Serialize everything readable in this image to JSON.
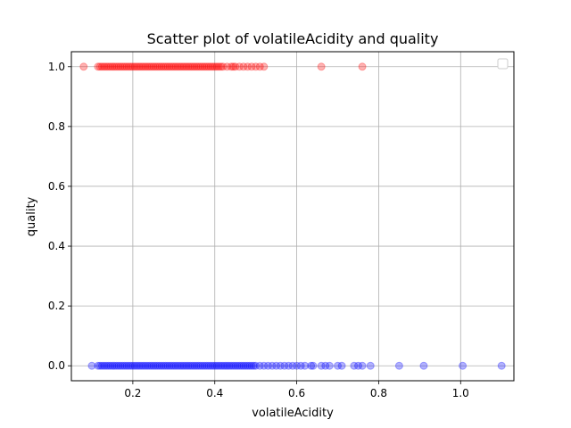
{
  "chart_data": {
    "type": "scatter",
    "title": "Scatter plot of volatileAcidity and quality",
    "xlabel": "volatileAcidity",
    "ylabel": "quality",
    "xlim": [
      0.05,
      1.13
    ],
    "ylim": [
      -0.05,
      1.05
    ],
    "xticks": [
      0.2,
      0.4,
      0.6,
      0.8,
      1.0
    ],
    "xtick_labels": [
      "0.2",
      "0.4",
      "0.6",
      "0.8",
      "1.0"
    ],
    "yticks": [
      0.0,
      0.2,
      0.4,
      0.6,
      0.8,
      1.0
    ],
    "ytick_labels": [
      "0.0",
      "0.2",
      "0.4",
      "0.6",
      "0.8",
      "1.0"
    ],
    "grid": true,
    "legend": {
      "placement": "top-right",
      "entries": []
    },
    "series": [
      {
        "color": "#ff0000",
        "alpha": 0.3,
        "points": [
          [
            0.08,
            1
          ],
          [
            0.115,
            1
          ],
          [
            0.12,
            1
          ],
          [
            0.125,
            1
          ],
          [
            0.13,
            1
          ],
          [
            0.135,
            1
          ],
          [
            0.14,
            1
          ],
          [
            0.145,
            1
          ],
          [
            0.15,
            1
          ],
          [
            0.155,
            1
          ],
          [
            0.16,
            1
          ],
          [
            0.165,
            1
          ],
          [
            0.17,
            1
          ],
          [
            0.175,
            1
          ],
          [
            0.18,
            1
          ],
          [
            0.185,
            1
          ],
          [
            0.19,
            1
          ],
          [
            0.195,
            1
          ],
          [
            0.2,
            1
          ],
          [
            0.205,
            1
          ],
          [
            0.21,
            1
          ],
          [
            0.215,
            1
          ],
          [
            0.22,
            1
          ],
          [
            0.225,
            1
          ],
          [
            0.23,
            1
          ],
          [
            0.235,
            1
          ],
          [
            0.24,
            1
          ],
          [
            0.245,
            1
          ],
          [
            0.25,
            1
          ],
          [
            0.255,
            1
          ],
          [
            0.26,
            1
          ],
          [
            0.265,
            1
          ],
          [
            0.27,
            1
          ],
          [
            0.275,
            1
          ],
          [
            0.28,
            1
          ],
          [
            0.285,
            1
          ],
          [
            0.29,
            1
          ],
          [
            0.295,
            1
          ],
          [
            0.3,
            1
          ],
          [
            0.305,
            1
          ],
          [
            0.31,
            1
          ],
          [
            0.315,
            1
          ],
          [
            0.32,
            1
          ],
          [
            0.325,
            1
          ],
          [
            0.33,
            1
          ],
          [
            0.335,
            1
          ],
          [
            0.34,
            1
          ],
          [
            0.345,
            1
          ],
          [
            0.35,
            1
          ],
          [
            0.355,
            1
          ],
          [
            0.36,
            1
          ],
          [
            0.365,
            1
          ],
          [
            0.37,
            1
          ],
          [
            0.375,
            1
          ],
          [
            0.38,
            1
          ],
          [
            0.385,
            1
          ],
          [
            0.39,
            1
          ],
          [
            0.395,
            1
          ],
          [
            0.4,
            1
          ],
          [
            0.405,
            1
          ],
          [
            0.41,
            1
          ],
          [
            0.415,
            1
          ],
          [
            0.42,
            1
          ],
          [
            0.43,
            1
          ],
          [
            0.44,
            1
          ],
          [
            0.445,
            1
          ],
          [
            0.45,
            1
          ],
          [
            0.46,
            1
          ],
          [
            0.47,
            1
          ],
          [
            0.48,
            1
          ],
          [
            0.49,
            1
          ],
          [
            0.5,
            1
          ],
          [
            0.51,
            1
          ],
          [
            0.52,
            1
          ],
          [
            0.66,
            1
          ],
          [
            0.76,
            1
          ]
        ]
      },
      {
        "color": "#0000ff",
        "alpha": 0.3,
        "points": [
          [
            0.1,
            0
          ],
          [
            0.115,
            0
          ],
          [
            0.12,
            0
          ],
          [
            0.125,
            0
          ],
          [
            0.13,
            0
          ],
          [
            0.135,
            0
          ],
          [
            0.14,
            0
          ],
          [
            0.145,
            0
          ],
          [
            0.15,
            0
          ],
          [
            0.155,
            0
          ],
          [
            0.16,
            0
          ],
          [
            0.165,
            0
          ],
          [
            0.17,
            0
          ],
          [
            0.175,
            0
          ],
          [
            0.18,
            0
          ],
          [
            0.185,
            0
          ],
          [
            0.19,
            0
          ],
          [
            0.195,
            0
          ],
          [
            0.2,
            0
          ],
          [
            0.205,
            0
          ],
          [
            0.21,
            0
          ],
          [
            0.215,
            0
          ],
          [
            0.22,
            0
          ],
          [
            0.225,
            0
          ],
          [
            0.23,
            0
          ],
          [
            0.235,
            0
          ],
          [
            0.24,
            0
          ],
          [
            0.245,
            0
          ],
          [
            0.25,
            0
          ],
          [
            0.255,
            0
          ],
          [
            0.26,
            0
          ],
          [
            0.265,
            0
          ],
          [
            0.27,
            0
          ],
          [
            0.275,
            0
          ],
          [
            0.28,
            0
          ],
          [
            0.285,
            0
          ],
          [
            0.29,
            0
          ],
          [
            0.295,
            0
          ],
          [
            0.3,
            0
          ],
          [
            0.305,
            0
          ],
          [
            0.31,
            0
          ],
          [
            0.315,
            0
          ],
          [
            0.32,
            0
          ],
          [
            0.325,
            0
          ],
          [
            0.33,
            0
          ],
          [
            0.335,
            0
          ],
          [
            0.34,
            0
          ],
          [
            0.345,
            0
          ],
          [
            0.35,
            0
          ],
          [
            0.355,
            0
          ],
          [
            0.36,
            0
          ],
          [
            0.365,
            0
          ],
          [
            0.37,
            0
          ],
          [
            0.375,
            0
          ],
          [
            0.38,
            0
          ],
          [
            0.385,
            0
          ],
          [
            0.39,
            0
          ],
          [
            0.395,
            0
          ],
          [
            0.4,
            0
          ],
          [
            0.405,
            0
          ],
          [
            0.41,
            0
          ],
          [
            0.415,
            0
          ],
          [
            0.42,
            0
          ],
          [
            0.425,
            0
          ],
          [
            0.43,
            0
          ],
          [
            0.435,
            0
          ],
          [
            0.44,
            0
          ],
          [
            0.445,
            0
          ],
          [
            0.45,
            0
          ],
          [
            0.455,
            0
          ],
          [
            0.46,
            0
          ],
          [
            0.465,
            0
          ],
          [
            0.47,
            0
          ],
          [
            0.475,
            0
          ],
          [
            0.48,
            0
          ],
          [
            0.485,
            0
          ],
          [
            0.49,
            0
          ],
          [
            0.495,
            0
          ],
          [
            0.5,
            0
          ],
          [
            0.51,
            0
          ],
          [
            0.52,
            0
          ],
          [
            0.53,
            0
          ],
          [
            0.54,
            0
          ],
          [
            0.55,
            0
          ],
          [
            0.56,
            0
          ],
          [
            0.57,
            0
          ],
          [
            0.58,
            0
          ],
          [
            0.59,
            0
          ],
          [
            0.6,
            0
          ],
          [
            0.61,
            0
          ],
          [
            0.62,
            0
          ],
          [
            0.635,
            0
          ],
          [
            0.64,
            0
          ],
          [
            0.66,
            0
          ],
          [
            0.67,
            0
          ],
          [
            0.68,
            0
          ],
          [
            0.7,
            0
          ],
          [
            0.71,
            0
          ],
          [
            0.74,
            0
          ],
          [
            0.75,
            0
          ],
          [
            0.76,
            0
          ],
          [
            0.78,
            0
          ],
          [
            0.85,
            0
          ],
          [
            0.91,
            0
          ],
          [
            1.005,
            0
          ],
          [
            1.1,
            0
          ]
        ]
      }
    ]
  }
}
